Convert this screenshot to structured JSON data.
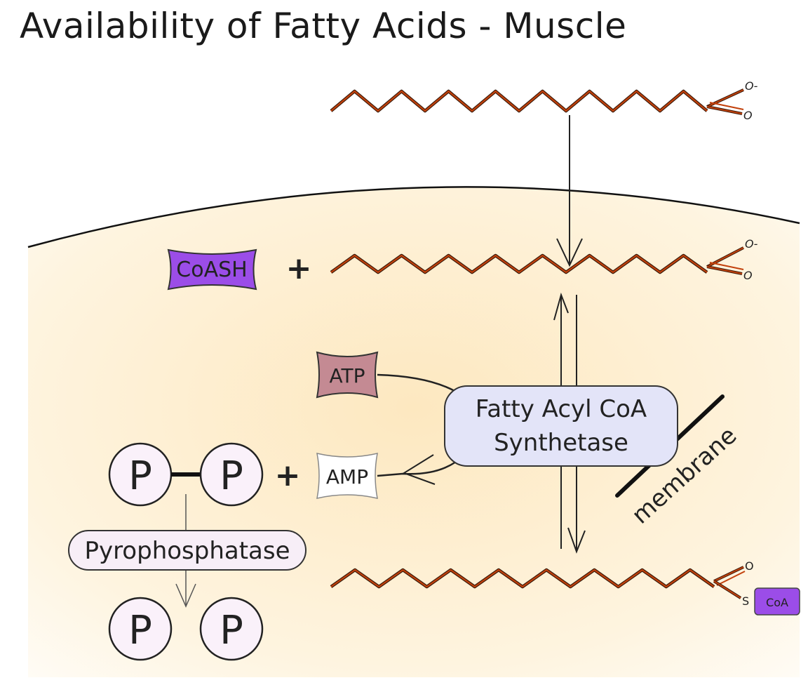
{
  "title": "Availability of Fatty Acids - Muscle",
  "labels": {
    "coash": "CoASH",
    "plus": "+",
    "atp": "ATP",
    "amp": "AMP",
    "enzyme_line1": "Fatty Acyl CoA",
    "enzyme_line2": "Synthetase",
    "membrane": "membrane",
    "phosphate": "P",
    "pyrophosphatase": "Pyrophosphatase",
    "carboxylate_o_minus": "O-",
    "carboxylate_o": "O",
    "thioester_o": "O",
    "thioester_s": "S",
    "coa_tag": "CoA"
  },
  "colors": {
    "chain": "#c2410c",
    "chain_shadow": "#3a1a0a",
    "cytoplasm_inner": "#fdeccb",
    "cytoplasm_outer": "#fffaf0",
    "coash_fill": "#9b4de8",
    "atp_fill": "#c48a93",
    "amp_fill": "#ffffff",
    "enzyme_fill": "#e3e4f8",
    "pyrophosphatase_fill": "#f7eef7",
    "coa_tag_fill": "#9b4de8"
  }
}
